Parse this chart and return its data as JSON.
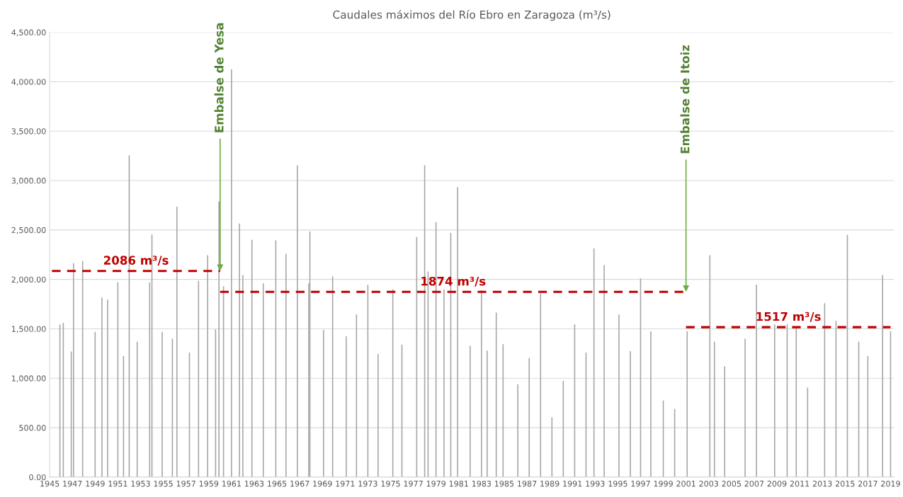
{
  "chart_data": {
    "type": "bar",
    "title": "Caudales máximos del Río Ebro en Zaragoza (m³/s)",
    "xlim": [
      1945,
      2019.3
    ],
    "xticks": [
      1945,
      1947,
      1949,
      1951,
      1953,
      1955,
      1957,
      1959,
      1961,
      1963,
      1965,
      1967,
      1969,
      1971,
      1973,
      1975,
      1977,
      1979,
      1981,
      1983,
      1985,
      1987,
      1989,
      1991,
      1993,
      1995,
      1997,
      1999,
      2001,
      2003,
      2005,
      2007,
      2009,
      2011,
      2013,
      2015,
      2017,
      2019
    ],
    "ylim": [
      0,
      4500
    ],
    "yticks": [
      {
        "value": 0,
        "label": "0.00"
      },
      {
        "value": 500,
        "label": "500.00"
      },
      {
        "value": 1000,
        "label": "1,000.00"
      },
      {
        "value": 1500,
        "label": "1,500.00"
      },
      {
        "value": 2000,
        "label": "2,000.00"
      },
      {
        "value": 2500,
        "label": "2,500.00"
      },
      {
        "value": 3000,
        "label": "3,000.00"
      },
      {
        "value": 3500,
        "label": "3,500.00"
      },
      {
        "value": 4000,
        "label": "4,000.00"
      },
      {
        "value": 4500,
        "label": "4,500.00"
      }
    ],
    "grid": "y",
    "series": [
      {
        "color": "#a6a6a6",
        "x": [
          1945.9,
          1946.2,
          1946.9,
          1947.1,
          1947.9,
          1949.0,
          1949.6,
          1950.1,
          1951.0,
          1951.5,
          1952.0,
          1952.7,
          1953.8,
          1954.0,
          1954.9,
          1955.8,
          1956.2,
          1957.3,
          1958.1,
          1958.9,
          1959.6,
          1959.9,
          1960.3,
          1961.0,
          1961.7,
          1962.0,
          1962.8,
          1963.8,
          1964.9,
          1965.8,
          1966.8,
          1967.8,
          1967.9,
          1969.1,
          1969.9,
          1971.1,
          1972.0,
          1973.0,
          1973.9,
          1975.2,
          1976.0,
          1977.3,
          1978.0,
          1978.3,
          1979.0,
          1979.7,
          1980.3,
          1980.9,
          1982.0,
          1983.0,
          1983.5,
          1984.3,
          1984.9,
          1986.2,
          1987.2,
          1988.2,
          1989.2,
          1990.2,
          1991.2,
          1992.2,
          1992.9,
          1993.8,
          1995.1,
          1996.1,
          1997.0,
          1997.9,
          1999.0,
          2000.0,
          2001.1,
          2003.1,
          2003.5,
          2004.4,
          2006.2,
          2007.2,
          2008.8,
          2009.9,
          2010.7,
          2011.7,
          2013.2,
          2014.2,
          2015.2,
          2016.2,
          2017.0,
          2018.3,
          2019.0
        ],
        "values": [
          1545,
          1560,
          1270,
          2165,
          2185,
          1470,
          1815,
          1795,
          1970,
          1225,
          3255,
          1370,
          1970,
          2455,
          1470,
          1400,
          2735,
          1260,
          1985,
          2245,
          1495,
          2790,
          1930,
          4125,
          2565,
          2045,
          2400,
          1960,
          2395,
          2260,
          3155,
          1960,
          2485,
          1490,
          2030,
          1425,
          1645,
          1945,
          1245,
          1900,
          1340,
          2430,
          3155,
          2080,
          2580,
          1900,
          2470,
          2935,
          1330,
          1890,
          1280,
          1665,
          1345,
          940,
          1205,
          1860,
          605,
          975,
          1545,
          1260,
          2315,
          2145,
          1645,
          1275,
          2010,
          1475,
          775,
          690,
          1475,
          2245,
          1370,
          1120,
          1400,
          1945,
          1545,
          1545,
          1510,
          905,
          1760,
          1580,
          2450,
          1370,
          1225,
          2045,
          1475
        ]
      },
      {
        "type": "line",
        "name": "2086 m³/s",
        "color": "#c00000",
        "line_style": "dashed",
        "x": [
          1945.2,
          1960.0
        ],
        "values": [
          2086,
          2086
        ]
      },
      {
        "type": "line",
        "name": "1874 m³/s",
        "color": "#c00000",
        "line_style": "dashed",
        "x": [
          1960.0,
          2001.0
        ],
        "values": [
          1874,
          1874
        ]
      },
      {
        "type": "line",
        "name": "1517 m³/s",
        "color": "#c00000",
        "line_style": "dashed",
        "x": [
          2001.0,
          2019.0
        ],
        "values": [
          1517,
          1517
        ]
      }
    ],
    "annotations": [
      {
        "text": "Embalse de Yesa",
        "x": 1960.0,
        "y": 2086
      },
      {
        "text": "Embalse de Itoiz",
        "x": 2001.0,
        "y": 1874
      }
    ]
  }
}
